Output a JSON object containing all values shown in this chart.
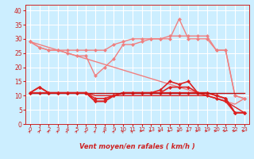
{
  "xlabel": "Vent moyen/en rafales ( km/h )",
  "x": [
    0,
    1,
    2,
    3,
    4,
    5,
    6,
    7,
    8,
    9,
    10,
    11,
    12,
    13,
    14,
    15,
    16,
    17,
    18,
    19,
    20,
    21,
    22,
    23
  ],
  "series": [
    {
      "name": "light_upper_with_spike",
      "color": "#f08080",
      "lw": 1.0,
      "marker": "D",
      "markersize": 2.5,
      "y": [
        29,
        27,
        26,
        26,
        26,
        26,
        26,
        26,
        26,
        28,
        29,
        30,
        30,
        30,
        30,
        31,
        31,
        31,
        31,
        31,
        26,
        26,
        10,
        9
      ]
    },
    {
      "name": "light_with_peak16",
      "color": "#f08080",
      "lw": 1.0,
      "marker": "D",
      "markersize": 2.5,
      "y": [
        29,
        27,
        26,
        26,
        25,
        24,
        24,
        17,
        20,
        23,
        28,
        28,
        29,
        30,
        30,
        30,
        37,
        30,
        30,
        30,
        26,
        26,
        10,
        9
      ]
    },
    {
      "name": "light_diagonal",
      "color": "#f08080",
      "lw": 1.0,
      "marker": null,
      "markersize": 0,
      "y": [
        29,
        28,
        27,
        26,
        25,
        24,
        23,
        22,
        21,
        20,
        19,
        18,
        17,
        16,
        15,
        14,
        13,
        12,
        11,
        10,
        9,
        8,
        7,
        9
      ]
    },
    {
      "name": "dark_upper",
      "color": "#dd2222",
      "lw": 1.2,
      "marker": "D",
      "markersize": 2.5,
      "y": [
        11,
        13,
        11,
        11,
        11,
        11,
        11,
        9,
        9,
        10,
        11,
        11,
        11,
        11,
        12,
        15,
        14,
        15,
        11,
        11,
        10,
        9,
        4,
        4
      ]
    },
    {
      "name": "dark_mid",
      "color": "#dd2222",
      "lw": 1.2,
      "marker": "D",
      "markersize": 2.5,
      "y": [
        11,
        13,
        11,
        11,
        11,
        11,
        11,
        8,
        8,
        10,
        11,
        11,
        11,
        11,
        11,
        13,
        13,
        13,
        11,
        11,
        10,
        9,
        4,
        4
      ]
    },
    {
      "name": "dark_lower",
      "color": "#dd2222",
      "lw": 1.2,
      "marker": "D",
      "markersize": 2.5,
      "y": [
        11,
        11,
        11,
        11,
        11,
        11,
        11,
        8,
        8,
        10,
        11,
        11,
        11,
        11,
        11,
        11,
        11,
        11,
        11,
        10,
        9,
        8,
        4,
        4
      ]
    },
    {
      "name": "dark_flat",
      "color": "#bb1111",
      "lw": 1.0,
      "marker": null,
      "markersize": 0,
      "y": [
        11,
        11,
        11,
        11,
        11,
        11,
        11,
        11,
        11,
        11,
        11,
        11,
        11,
        11,
        11,
        11,
        11,
        11,
        11,
        11,
        11,
        11,
        11,
        11
      ]
    },
    {
      "name": "dark_slight_decline",
      "color": "#dd2222",
      "lw": 1.0,
      "marker": null,
      "markersize": 0,
      "y": [
        11,
        11,
        11,
        11,
        11,
        11,
        11,
        10,
        10,
        10,
        10,
        10,
        10,
        10,
        10,
        10,
        10,
        10,
        10,
        10,
        9,
        8,
        6,
        4
      ]
    }
  ],
  "ylim": [
    0,
    42
  ],
  "yticks": [
    0,
    5,
    10,
    15,
    20,
    25,
    30,
    35,
    40
  ],
  "xlim": [
    -0.5,
    23.5
  ],
  "bg_color": "#cceeff",
  "grid_color": "#ffffff",
  "axis_color": "#cc2222",
  "tick_color": "#cc2222",
  "label_color": "#cc2222",
  "arrows_ne": [
    0,
    1,
    2,
    3,
    4,
    5,
    6,
    7,
    8,
    9,
    10,
    11
  ],
  "arrows_e": [
    12,
    13,
    14,
    15,
    16,
    17,
    18,
    19,
    20,
    21,
    22,
    23
  ]
}
